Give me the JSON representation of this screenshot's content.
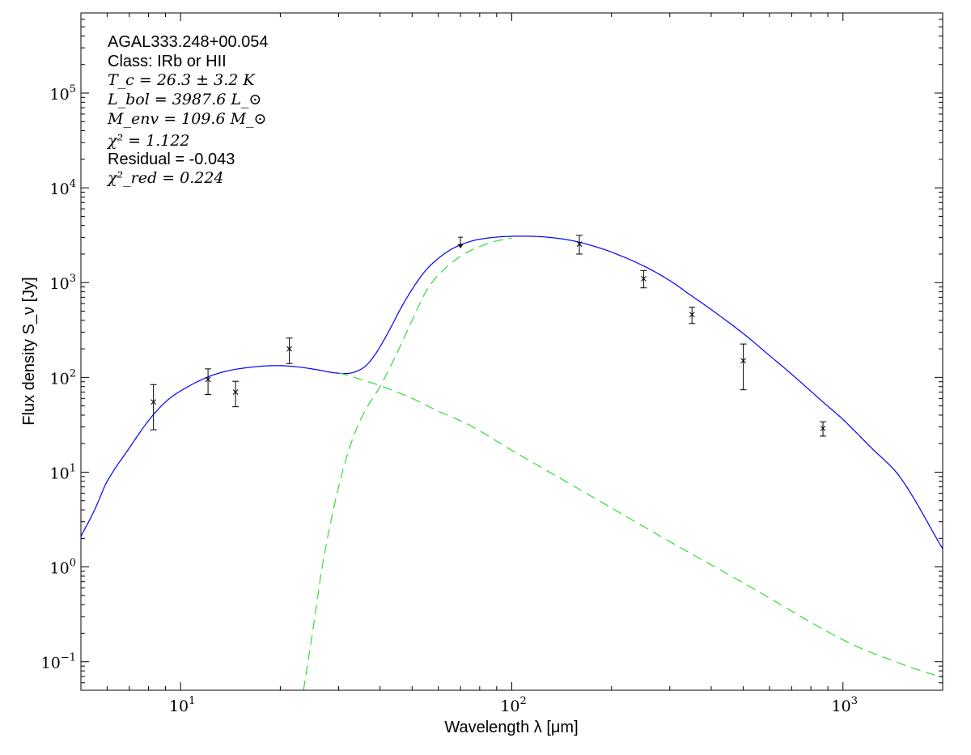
{
  "chart_data": {
    "type": "scatter",
    "title": "",
    "xlabel": "Wavelength λ [μm]",
    "ylabel": "Flux density S_ν [Jy]",
    "xscale": "log",
    "yscale": "log",
    "xlim": [
      5,
      2000
    ],
    "ylim": [
      0.05,
      700000
    ],
    "grid": false,
    "x_ticks": [
      {
        "value": 10,
        "base": "10",
        "exp": "1"
      },
      {
        "value": 100,
        "base": "10",
        "exp": "2"
      },
      {
        "value": 1000,
        "base": "10",
        "exp": "3"
      }
    ],
    "y_ticks": [
      {
        "value": 0.1,
        "base": "10",
        "exp": "−1"
      },
      {
        "value": 1,
        "base": "10",
        "exp": "0"
      },
      {
        "value": 10,
        "base": "10",
        "exp": "1"
      },
      {
        "value": 100,
        "base": "10",
        "exp": "2"
      },
      {
        "value": 1000,
        "base": "10",
        "exp": "3"
      },
      {
        "value": 10000,
        "base": "10",
        "exp": "4"
      },
      {
        "value": 100000,
        "base": "10",
        "exp": "5"
      }
    ],
    "annotations": {
      "source": "AGAL333.248+00.054",
      "class": "Class: IRb or HII",
      "tc": "T_c = 26.3 ± 3.2 K",
      "lbol": "L_bol = 3987.6 L_⊙",
      "menv": "M_env = 109.6 M_⊙",
      "chi2": "χ² = 1.122",
      "residual": "Residual = -0.043",
      "chi2red": "χ²_red = 0.224"
    },
    "points": [
      {
        "x": 8.28,
        "y": 55,
        "ylo": 28,
        "yhi": 84
      },
      {
        "x": 12.1,
        "y": 95,
        "ylo": 66,
        "yhi": 123
      },
      {
        "x": 14.65,
        "y": 70,
        "ylo": 49,
        "yhi": 91
      },
      {
        "x": 21.3,
        "y": 200,
        "ylo": 140,
        "yhi": 260
      },
      {
        "x": 160,
        "y": 2550,
        "ylo": 2000,
        "yhi": 3150
      },
      {
        "x": 250,
        "y": 1100,
        "ylo": 880,
        "yhi": 1340
      },
      {
        "x": 350,
        "y": 460,
        "ylo": 370,
        "yhi": 550
      },
      {
        "x": 500,
        "y": 150,
        "ylo": 74,
        "yhi": 225
      },
      {
        "x": 870,
        "y": 29,
        "ylo": 24,
        "yhi": 34
      }
    ],
    "upper_limits": [
      {
        "x": 70,
        "y": 2900
      }
    ],
    "series": [
      {
        "role": "total fit",
        "color": "#0000ff",
        "style": "solid",
        "x": [
          5,
          5.5,
          6,
          7,
          8,
          9,
          10,
          12,
          14,
          17,
          20,
          23,
          26,
          29,
          32,
          34,
          36,
          38,
          40,
          43,
          46,
          50,
          55,
          60,
          65,
          70,
          75,
          80,
          90,
          100,
          115,
          130,
          150,
          170,
          200,
          250,
          300,
          350,
          400,
          500,
          600,
          700,
          870,
          1000,
          1200,
          1500,
          2000
        ],
        "y": [
          2.1,
          4,
          8,
          18,
          35,
          55,
          72,
          100,
          118,
          130,
          133,
          128,
          120,
          112,
          110,
          116,
          130,
          160,
          210,
          330,
          520,
          850,
          1350,
          1800,
          2200,
          2500,
          2720,
          2870,
          3020,
          3080,
          3080,
          3000,
          2800,
          2520,
          2100,
          1500,
          1050,
          720,
          520,
          290,
          170,
          108,
          55,
          36,
          19,
          8.5,
          1.55
        ]
      },
      {
        "role": "warm component",
        "color": "#33dd33",
        "style": "dashed",
        "x": [
          30,
          32,
          35,
          40,
          50,
          60,
          75,
          100,
          150,
          200,
          300,
          500,
          1000,
          1500,
          2000
        ],
        "y": [
          112,
          105,
          95,
          82,
          60,
          44,
          31,
          17,
          7.5,
          4.2,
          1.85,
          0.68,
          0.17,
          0.095,
          0.068
        ]
      },
      {
        "role": "cold component",
        "color": "#33dd33",
        "style": "dashed",
        "x": [
          23.5,
          25,
          27,
          30,
          33,
          36,
          40,
          45,
          50,
          55,
          60,
          70,
          80,
          90,
          100
        ],
        "y": [
          0.05,
          0.2,
          1.2,
          7,
          22,
          44,
          80,
          180,
          400,
          800,
          1200,
          1900,
          2400,
          2750,
          2950
        ]
      }
    ]
  }
}
